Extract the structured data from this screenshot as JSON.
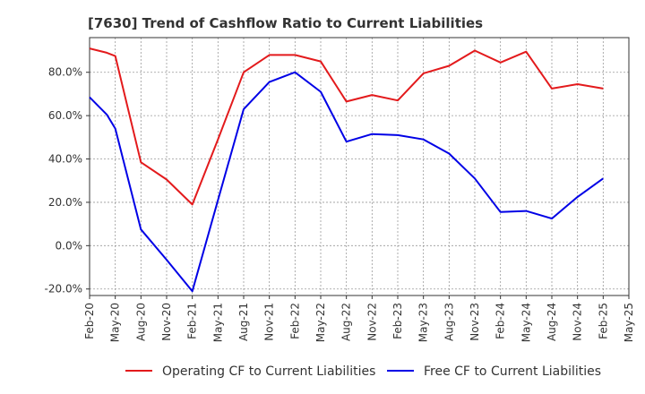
{
  "chart_data": {
    "type": "line",
    "title": "[7630]  Trend of Cashflow Ratio to Current Liabilities",
    "x_tick_labels": [
      "Feb-20",
      "May-20",
      "Aug-20",
      "Nov-20",
      "Feb-21",
      "May-21",
      "Aug-21",
      "Nov-21",
      "Feb-22",
      "May-22",
      "Aug-22",
      "Nov-22",
      "Feb-23",
      "May-23",
      "Aug-23",
      "Nov-23",
      "Feb-24",
      "May-24",
      "Aug-24",
      "Nov-24",
      "Feb-25",
      "May-25"
    ],
    "y_tick_labels": [
      "-20.0%",
      "0.0%",
      "20.0%",
      "40.0%",
      "60.0%",
      "80.0%"
    ],
    "y_ticks": [
      -20,
      0,
      20,
      40,
      60,
      80
    ],
    "ylim": [
      -23,
      96
    ],
    "grid": true,
    "legend_position": "bottom",
    "series": [
      {
        "name": "Operating CF to Current Liabilities",
        "color": "#e31a1c",
        "points": [
          {
            "x": 0,
            "y": 91.0
          },
          {
            "x": 0.67,
            "y": 89.0
          },
          {
            "x": 1,
            "y": 87.5
          },
          {
            "x": 2,
            "y": 38.5
          },
          {
            "x": 3,
            "y": 30.5
          },
          {
            "x": 4,
            "y": 19.0
          },
          {
            "x": 5,
            "y": 49.0
          },
          {
            "x": 6,
            "y": 80.0
          },
          {
            "x": 7,
            "y": 88.0
          },
          {
            "x": 8,
            "y": 88.0
          },
          {
            "x": 9,
            "y": 85.0
          },
          {
            "x": 10,
            "y": 66.5
          },
          {
            "x": 11,
            "y": 69.5
          },
          {
            "x": 12,
            "y": 67.0
          },
          {
            "x": 13,
            "y": 79.5
          },
          {
            "x": 14,
            "y": 83.0
          },
          {
            "x": 15,
            "y": 90.0
          },
          {
            "x": 16,
            "y": 84.5
          },
          {
            "x": 17,
            "y": 89.5
          },
          {
            "x": 18,
            "y": 72.5
          },
          {
            "x": 19,
            "y": 74.5
          },
          {
            "x": 20,
            "y": 72.5
          }
        ]
      },
      {
        "name": "Free CF to Current Liabilities",
        "color": "#0000e6",
        "points": [
          {
            "x": 0,
            "y": 68.5
          },
          {
            "x": 0.67,
            "y": 60.5
          },
          {
            "x": 1,
            "y": 54.0
          },
          {
            "x": 2,
            "y": 7.5
          },
          {
            "x": 3,
            "y": -6.5
          },
          {
            "x": 4,
            "y": -21.0
          },
          {
            "x": 5,
            "y": 21.0
          },
          {
            "x": 6,
            "y": 63.0
          },
          {
            "x": 7,
            "y": 75.5
          },
          {
            "x": 8,
            "y": 80.0
          },
          {
            "x": 9,
            "y": 71.0
          },
          {
            "x": 10,
            "y": 48.0
          },
          {
            "x": 11,
            "y": 51.5
          },
          {
            "x": 12,
            "y": 51.0
          },
          {
            "x": 13,
            "y": 49.0
          },
          {
            "x": 14,
            "y": 42.5
          },
          {
            "x": 15,
            "y": 31.0
          },
          {
            "x": 16,
            "y": 15.5
          },
          {
            "x": 17,
            "y": 16.0
          },
          {
            "x": 18,
            "y": 12.5
          },
          {
            "x": 19,
            "y": 22.5
          },
          {
            "x": 20,
            "y": 31.0
          }
        ]
      }
    ]
  }
}
